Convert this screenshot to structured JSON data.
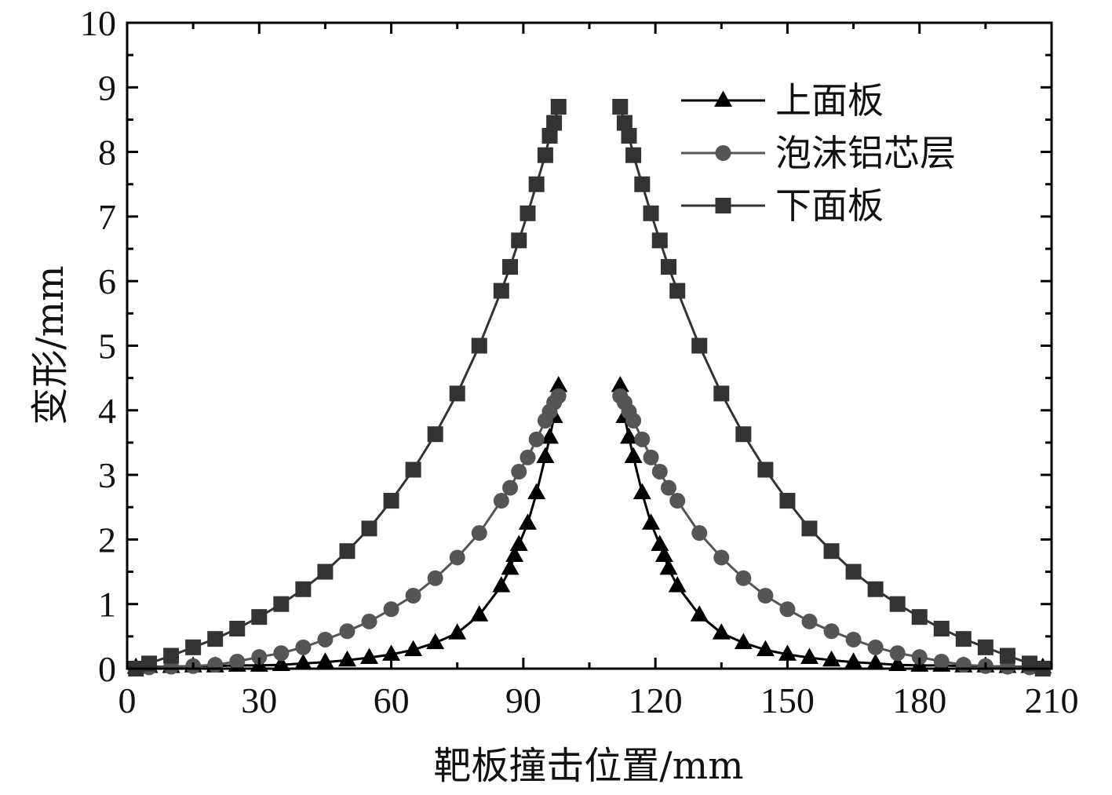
{
  "chart_data": {
    "type": "line",
    "xlabel": "靶板撞击位置/mm",
    "ylabel": "变形/mm",
    "xlim": [
      0,
      210
    ],
    "ylim": [
      0,
      10
    ],
    "xticks": [
      "0",
      "30",
      "60",
      "90",
      "120",
      "150",
      "180",
      "210"
    ],
    "yticks": [
      "0",
      "1",
      "2",
      "3",
      "4",
      "5",
      "6",
      "7",
      "8",
      "9",
      "10"
    ],
    "grid": false,
    "legend_position": "top-right",
    "series": [
      {
        "name": "上面板",
        "marker": "triangle",
        "color": "#000000",
        "points": [
          [
            2,
            0.02
          ],
          [
            5,
            0.03
          ],
          [
            10,
            0.03
          ],
          [
            15,
            0.04
          ],
          [
            20,
            0.04
          ],
          [
            25,
            0.05
          ],
          [
            30,
            0.05
          ],
          [
            35,
            0.06
          ],
          [
            40,
            0.08
          ],
          [
            45,
            0.1
          ],
          [
            50,
            0.13
          ],
          [
            55,
            0.17
          ],
          [
            60,
            0.22
          ],
          [
            65,
            0.29
          ],
          [
            70,
            0.4
          ],
          [
            75,
            0.55
          ],
          [
            80,
            0.83
          ],
          [
            85,
            1.28
          ],
          [
            87,
            1.55
          ],
          [
            88,
            1.75
          ],
          [
            89,
            1.92
          ],
          [
            91,
            2.25
          ],
          [
            93,
            2.72
          ],
          [
            95,
            3.28
          ],
          [
            96,
            3.58
          ],
          [
            97,
            3.9
          ],
          [
            98,
            4.38
          ],
          [
            112,
            4.38
          ],
          [
            113,
            3.9
          ],
          [
            114,
            3.58
          ],
          [
            115,
            3.28
          ],
          [
            117,
            2.72
          ],
          [
            119,
            2.25
          ],
          [
            121,
            1.92
          ],
          [
            122,
            1.75
          ],
          [
            123,
            1.55
          ],
          [
            125,
            1.28
          ],
          [
            130,
            0.83
          ],
          [
            135,
            0.55
          ],
          [
            140,
            0.4
          ],
          [
            145,
            0.29
          ],
          [
            150,
            0.22
          ],
          [
            155,
            0.17
          ],
          [
            160,
            0.13
          ],
          [
            165,
            0.1
          ],
          [
            170,
            0.08
          ],
          [
            175,
            0.06
          ],
          [
            180,
            0.05
          ],
          [
            185,
            0.05
          ],
          [
            190,
            0.04
          ],
          [
            195,
            0.04
          ],
          [
            200,
            0.03
          ],
          [
            205,
            0.03
          ],
          [
            208,
            0.02
          ]
        ]
      },
      {
        "name": "泡沫铝芯层",
        "marker": "circle",
        "color": "#555555",
        "points": [
          [
            2,
            0.0
          ],
          [
            5,
            0.02
          ],
          [
            10,
            0.03
          ],
          [
            15,
            0.04
          ],
          [
            20,
            0.06
          ],
          [
            25,
            0.11
          ],
          [
            30,
            0.18
          ],
          [
            35,
            0.24
          ],
          [
            40,
            0.33
          ],
          [
            45,
            0.45
          ],
          [
            50,
            0.58
          ],
          [
            55,
            0.73
          ],
          [
            60,
            0.92
          ],
          [
            65,
            1.13
          ],
          [
            70,
            1.4
          ],
          [
            75,
            1.72
          ],
          [
            80,
            2.1
          ],
          [
            85,
            2.6
          ],
          [
            87,
            2.8
          ],
          [
            89,
            3.05
          ],
          [
            91,
            3.27
          ],
          [
            93,
            3.55
          ],
          [
            95,
            3.84
          ],
          [
            96,
            3.98
          ],
          [
            97,
            4.12
          ],
          [
            98,
            4.22
          ],
          [
            112,
            4.22
          ],
          [
            113,
            4.12
          ],
          [
            114,
            3.98
          ],
          [
            115,
            3.84
          ],
          [
            117,
            3.55
          ],
          [
            119,
            3.27
          ],
          [
            121,
            3.05
          ],
          [
            123,
            2.8
          ],
          [
            125,
            2.6
          ],
          [
            130,
            2.1
          ],
          [
            135,
            1.72
          ],
          [
            140,
            1.4
          ],
          [
            145,
            1.13
          ],
          [
            150,
            0.92
          ],
          [
            155,
            0.73
          ],
          [
            160,
            0.58
          ],
          [
            165,
            0.45
          ],
          [
            170,
            0.33
          ],
          [
            175,
            0.24
          ],
          [
            180,
            0.18
          ],
          [
            185,
            0.11
          ],
          [
            190,
            0.06
          ],
          [
            195,
            0.04
          ],
          [
            200,
            0.03
          ],
          [
            205,
            0.02
          ],
          [
            208,
            0.0
          ]
        ]
      },
      {
        "name": "下面板",
        "marker": "square",
        "color": "#333333",
        "points": [
          [
            2,
            0.0
          ],
          [
            5,
            0.08
          ],
          [
            10,
            0.2
          ],
          [
            15,
            0.33
          ],
          [
            20,
            0.46
          ],
          [
            25,
            0.62
          ],
          [
            30,
            0.8
          ],
          [
            35,
            1.0
          ],
          [
            40,
            1.23
          ],
          [
            45,
            1.5
          ],
          [
            50,
            1.82
          ],
          [
            55,
            2.17
          ],
          [
            60,
            2.6
          ],
          [
            65,
            3.08
          ],
          [
            70,
            3.63
          ],
          [
            75,
            4.26
          ],
          [
            80,
            5.0
          ],
          [
            85,
            5.85
          ],
          [
            87,
            6.22
          ],
          [
            89,
            6.63
          ],
          [
            91,
            7.05
          ],
          [
            93,
            7.5
          ],
          [
            95,
            7.95
          ],
          [
            96,
            8.25
          ],
          [
            97,
            8.45
          ],
          [
            98,
            8.7
          ],
          [
            112,
            8.7
          ],
          [
            113,
            8.45
          ],
          [
            114,
            8.25
          ],
          [
            115,
            7.95
          ],
          [
            117,
            7.5
          ],
          [
            119,
            7.05
          ],
          [
            121,
            6.63
          ],
          [
            123,
            6.22
          ],
          [
            125,
            5.85
          ],
          [
            130,
            5.0
          ],
          [
            135,
            4.26
          ],
          [
            140,
            3.63
          ],
          [
            145,
            3.08
          ],
          [
            150,
            2.6
          ],
          [
            155,
            2.17
          ],
          [
            160,
            1.82
          ],
          [
            165,
            1.5
          ],
          [
            170,
            1.23
          ],
          [
            175,
            1.0
          ],
          [
            180,
            0.8
          ],
          [
            185,
            0.62
          ],
          [
            190,
            0.46
          ],
          [
            195,
            0.33
          ],
          [
            200,
            0.2
          ],
          [
            205,
            0.08
          ],
          [
            208,
            0.0
          ]
        ]
      }
    ]
  }
}
